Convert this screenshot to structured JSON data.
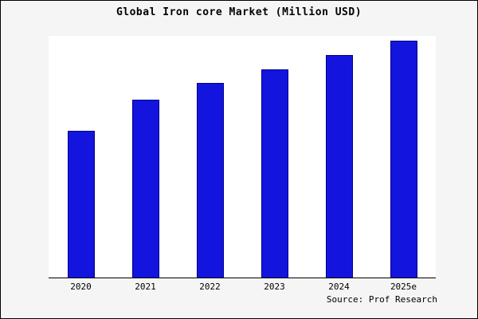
{
  "title": "Global Iron core Market (Million USD)",
  "source": "Source: Prof Research",
  "colors": {
    "figure_bg": "#f5f5f5",
    "plot_bg": "#ffffff",
    "bar_fill": "#1414df",
    "bar_edge": "#00008b",
    "frame": "#000000"
  },
  "chart_data": {
    "type": "bar",
    "title": "Global Iron core Market (Million USD)",
    "categories": [
      "2020",
      "2021",
      "2022",
      "2023",
      "2024",
      "2025e"
    ],
    "values": [
      62,
      75,
      82,
      88,
      94,
      100
    ],
    "xlabel": "",
    "ylabel": "",
    "ylim": [
      0,
      102
    ],
    "grid": false,
    "legend": false,
    "y_axis_labeled": false,
    "annotation": "Source: Prof Research"
  }
}
